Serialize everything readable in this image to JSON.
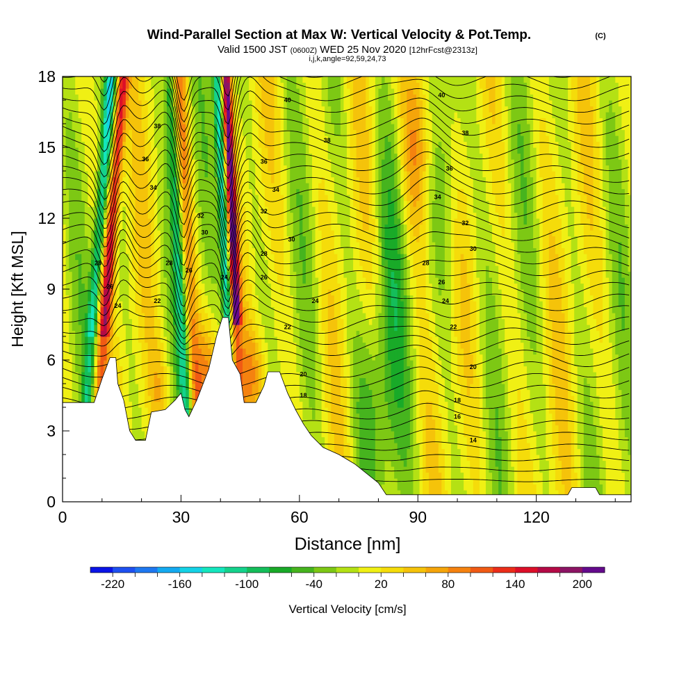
{
  "header": {
    "title": "Wind-Parallel Section at Max W: Vertical Velocity & Pot.Temp.",
    "copyright": "(C)",
    "valid_prefix": "Valid 1500 JST",
    "valid_utc": "(0600Z)",
    "valid_date": "WED 25 Nov 2020",
    "forecast": "[12hrFcst@2313z]",
    "indices": "i,j,k,angle=92,59,24,73"
  },
  "colors": {
    "colorbar": [
      "#0a14e6",
      "#1e50f0",
      "#1e78f0",
      "#14aaf0",
      "#14d2e6",
      "#14e6be",
      "#14d28c",
      "#14be5a",
      "#19aa28",
      "#46b41e",
      "#7dc814",
      "#b4e114",
      "#f0f014",
      "#f5dc0a",
      "#f5c30a",
      "#f5a50a",
      "#f5820f",
      "#f05a14",
      "#eb2d19",
      "#dc0f28",
      "#b40a46",
      "#8c1464",
      "#640a8c"
    ],
    "contour": "#000000",
    "terrain": "#ffffff"
  },
  "chart_data": {
    "type": "heatmap",
    "xlabel": "Distance [nm]",
    "ylabel": "Height [Kft MSL]",
    "xlim": [
      0,
      144
    ],
    "ylim": [
      0,
      18
    ],
    "x_ticks": [
      0,
      30,
      60,
      90,
      120
    ],
    "y_ticks": [
      0,
      3,
      6,
      9,
      12,
      15,
      18
    ],
    "grid": false,
    "colorbar": {
      "label": "Vertical Velocity [cm/s]",
      "tick_labels": [
        "-220",
        "-160",
        "-100",
        "-40",
        "20",
        "80",
        "140",
        "200"
      ],
      "range": [
        -240,
        220
      ]
    },
    "contour_labels": [
      {
        "text": "40",
        "x": 57,
        "y": 17.0
      },
      {
        "text": "40",
        "x": 96,
        "y": 17.2
      },
      {
        "text": "38",
        "x": 24,
        "y": 15.9
      },
      {
        "text": "38",
        "x": 67,
        "y": 15.3
      },
      {
        "text": "38",
        "x": 102,
        "y": 15.6
      },
      {
        "text": "36",
        "x": 21,
        "y": 14.5
      },
      {
        "text": "36",
        "x": 51,
        "y": 14.4
      },
      {
        "text": "36",
        "x": 98,
        "y": 14.1
      },
      {
        "text": "34",
        "x": 23,
        "y": 13.3
      },
      {
        "text": "34",
        "x": 54,
        "y": 13.2
      },
      {
        "text": "34",
        "x": 95,
        "y": 12.9
      },
      {
        "text": "32",
        "x": 35,
        "y": 12.1
      },
      {
        "text": "32",
        "x": 51,
        "y": 12.3
      },
      {
        "text": "32",
        "x": 102,
        "y": 11.8
      },
      {
        "text": "30",
        "x": 36,
        "y": 11.4
      },
      {
        "text": "30",
        "x": 58,
        "y": 11.1
      },
      {
        "text": "30",
        "x": 104,
        "y": 10.7
      },
      {
        "text": "28",
        "x": 9,
        "y": 10.1
      },
      {
        "text": "28",
        "x": 27,
        "y": 10.1
      },
      {
        "text": "28",
        "x": 51,
        "y": 10.5
      },
      {
        "text": "28",
        "x": 92,
        "y": 10.1
      },
      {
        "text": "26",
        "x": 12,
        "y": 9.1
      },
      {
        "text": "26",
        "x": 32,
        "y": 9.8
      },
      {
        "text": "26",
        "x": 51,
        "y": 9.5
      },
      {
        "text": "26",
        "x": 96,
        "y": 9.3
      },
      {
        "text": "24",
        "x": 14,
        "y": 8.3
      },
      {
        "text": "24",
        "x": 41,
        "y": 9.5
      },
      {
        "text": "24",
        "x": 64,
        "y": 8.5
      },
      {
        "text": "24",
        "x": 97,
        "y": 8.5
      },
      {
        "text": "22",
        "x": 24,
        "y": 8.5
      },
      {
        "text": "22",
        "x": 57,
        "y": 7.4
      },
      {
        "text": "22",
        "x": 99,
        "y": 7.4
      },
      {
        "text": "20",
        "x": 61,
        "y": 5.4
      },
      {
        "text": "20",
        "x": 104,
        "y": 5.7
      },
      {
        "text": "18",
        "x": 61,
        "y": 4.5
      },
      {
        "text": "18",
        "x": 100,
        "y": 4.3
      },
      {
        "text": "16",
        "x": 100,
        "y": 3.6
      },
      {
        "text": "14",
        "x": 104,
        "y": 2.6
      }
    ]
  }
}
